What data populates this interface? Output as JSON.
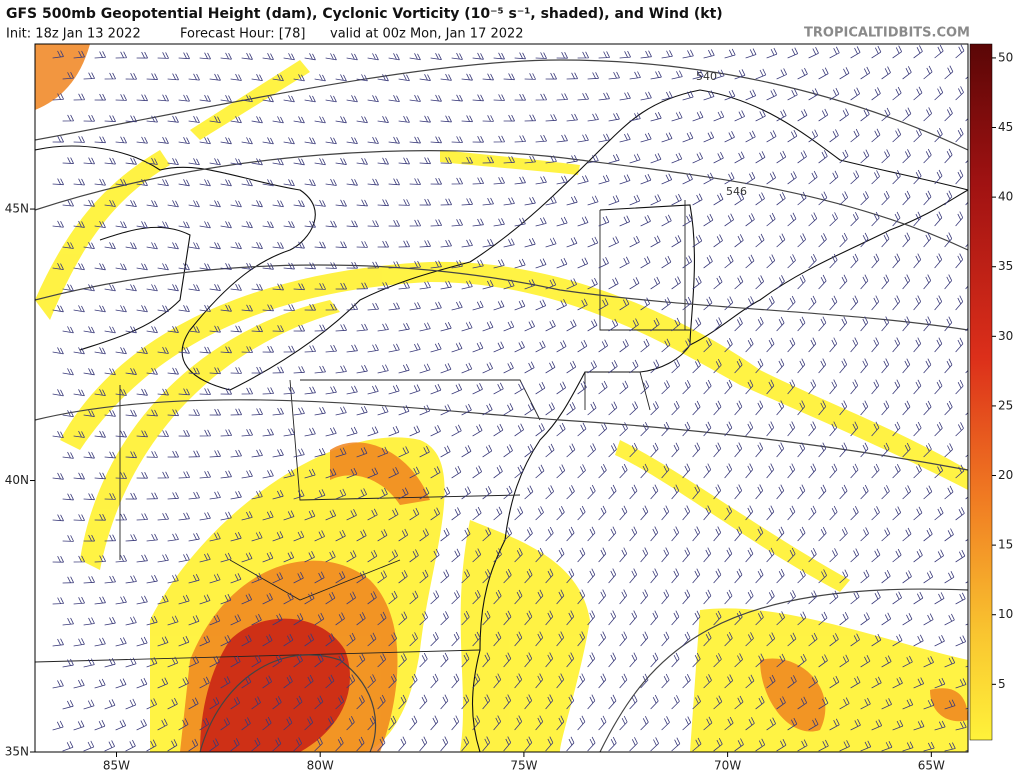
{
  "chart_data": {
    "type": "map",
    "title": "GFS 500mb Geopotential Height (dam), Cyclonic Vorticity (10⁻⁵ s⁻¹, shaded), and Wind (kt)",
    "init": "Init: 18z Jan 13 2022",
    "forecast_hour": "Forecast Hour: [78]",
    "valid": "valid at 00z Mon, Jan 17 2022",
    "source": "TROPICALTIDBITS.COM",
    "xlim": [
      -87,
      -64.1
    ],
    "ylim": [
      35,
      48.04
    ],
    "xticks": [
      {
        "value": -85,
        "label": "85W"
      },
      {
        "value": -80,
        "label": "80W"
      },
      {
        "value": -75,
        "label": "75W"
      },
      {
        "value": -70,
        "label": "70W"
      },
      {
        "value": -65,
        "label": "65W"
      }
    ],
    "yticks": [
      {
        "value": 35,
        "label": "35N"
      },
      {
        "value": 40,
        "label": "40N"
      },
      {
        "value": 45,
        "label": "45N"
      }
    ],
    "contour_labels": [
      "540",
      "546"
    ],
    "colorbar": {
      "range": [
        1,
        51
      ],
      "ticks": [
        5,
        10,
        15,
        20,
        25,
        30,
        35,
        40,
        45,
        50
      ]
    }
  }
}
